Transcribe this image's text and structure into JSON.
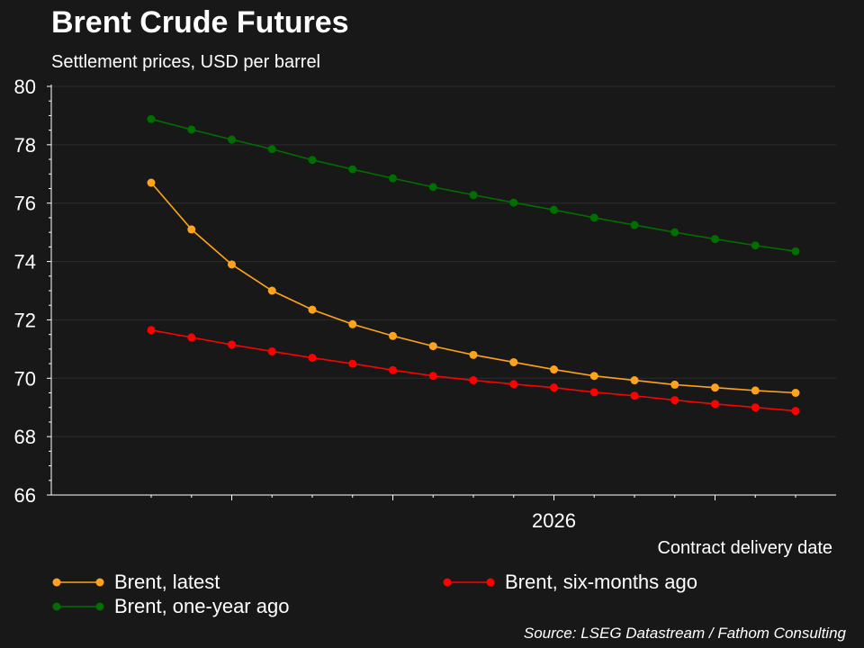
{
  "header": {
    "title": "Brent Crude Futures",
    "subtitle": "Settlement prices, USD per barrel"
  },
  "source": "Source: LSEG Datastream / Fathom Consulting",
  "chart_data": {
    "type": "line",
    "xlabel": "Contract delivery date",
    "ylabel": "",
    "ylim": [
      66,
      80
    ],
    "yticks": [
      66,
      68,
      70,
      72,
      74,
      76,
      78,
      80
    ],
    "x_tick_labels": [
      {
        "index": 10,
        "label": "2026"
      }
    ],
    "grid": true,
    "legend_position": "bottom",
    "series": [
      {
        "name": "Brent, latest",
        "color": "#ffa31a",
        "values": [
          76.7,
          75.1,
          73.9,
          73.0,
          72.35,
          71.85,
          71.45,
          71.1,
          70.8,
          70.55,
          70.3,
          70.08,
          69.93,
          69.78,
          69.68,
          69.58,
          69.5
        ]
      },
      {
        "name": "Brent, six-months ago",
        "color": "#ff0000",
        "values": [
          71.65,
          71.4,
          71.15,
          70.92,
          70.7,
          70.5,
          70.28,
          70.08,
          69.93,
          69.8,
          69.68,
          69.52,
          69.4,
          69.25,
          69.12,
          69.0,
          68.88
        ]
      },
      {
        "name": "Brent, one-year ago",
        "color": "#006e00",
        "values": [
          78.88,
          78.52,
          78.18,
          77.85,
          77.48,
          77.16,
          76.85,
          76.55,
          76.28,
          76.02,
          75.77,
          75.5,
          75.25,
          75.0,
          74.77,
          74.55,
          74.35
        ]
      }
    ]
  }
}
